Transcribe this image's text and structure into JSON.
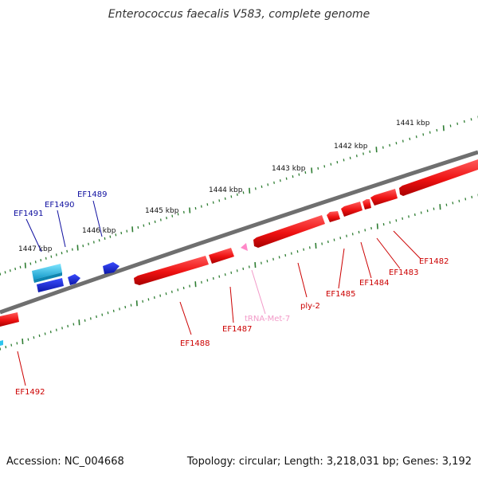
{
  "title": "Enterococcus faecalis V583, complete genome",
  "footer": {
    "accession": "Accession: NC_004668",
    "summary": "Topology: circular; Length: 3,218,031 bp; Genes: 3,192"
  },
  "colors": {
    "backbone": "#777777",
    "tick": "#2e7d32",
    "forward_gene": "#1f2fd6",
    "forward_rna": "#2ec5ee",
    "reverse_gene": "#ee1111",
    "trna": "#ff88c8",
    "label_forward": "#1010a0",
    "label_reverse": "#cc0000",
    "label_trna": "#f29ac8"
  },
  "scale_labels": [
    "1441 kbp",
    "1442 kbp",
    "1443 kbp",
    "1444 kbp",
    "1445 kbp",
    "1446 kbp",
    "1447 kbp"
  ],
  "gene_labels": [
    {
      "name": "EF1489",
      "strand": "forward"
    },
    {
      "name": "EF1490",
      "strand": "forward"
    },
    {
      "name": "EF1491",
      "strand": "forward"
    },
    {
      "name": "EF1482",
      "strand": "reverse"
    },
    {
      "name": "EF1483",
      "strand": "reverse"
    },
    {
      "name": "EF1484",
      "strand": "reverse"
    },
    {
      "name": "EF1485",
      "strand": "reverse"
    },
    {
      "name": "ply-2",
      "strand": "reverse"
    },
    {
      "name": "tRNA-Met-7",
      "strand": "reverse",
      "type": "trna"
    },
    {
      "name": "EF1487",
      "strand": "reverse"
    },
    {
      "name": "EF1488",
      "strand": "reverse"
    },
    {
      "name": "EF1492",
      "strand": "reverse"
    }
  ]
}
